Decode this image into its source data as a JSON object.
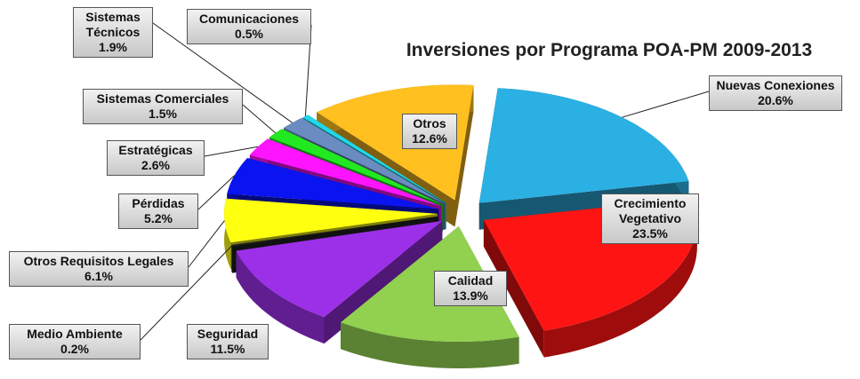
{
  "chart_data": {
    "type": "pie",
    "title": "Inversiones por Programa POA-PM 2009-2013",
    "categories": [
      "Nuevas Conexiones",
      "Crecimiento Vegetativo",
      "Calidad",
      "Seguridad",
      "Medio Ambiente",
      "Otros Requisitos Legales",
      "Pérdidas",
      "Estratégicas",
      "Sistemas Comerciales",
      "Sistemas Técnicos",
      "Comunicaciones",
      "Otros"
    ],
    "values": [
      20.6,
      23.5,
      13.9,
      11.5,
      0.2,
      6.1,
      5.2,
      2.6,
      1.5,
      1.9,
      0.5,
      12.6
    ],
    "value_labels": [
      "20.6%",
      "23.5%",
      "13.9%",
      "11.5%",
      "0.2%",
      "6.1%",
      "5.2%",
      "2.6%",
      "1.5%",
      "1.9%",
      "0.5%",
      "12.6%"
    ],
    "colors": [
      "#2bb0e3",
      "#ff1414",
      "#92d050",
      "#9b30e8",
      "#222222",
      "#ffff10",
      "#0a14f0",
      "#ff14ff",
      "#22e822",
      "#6a8cc0",
      "#20d8e8",
      "#ffc020"
    ]
  }
}
